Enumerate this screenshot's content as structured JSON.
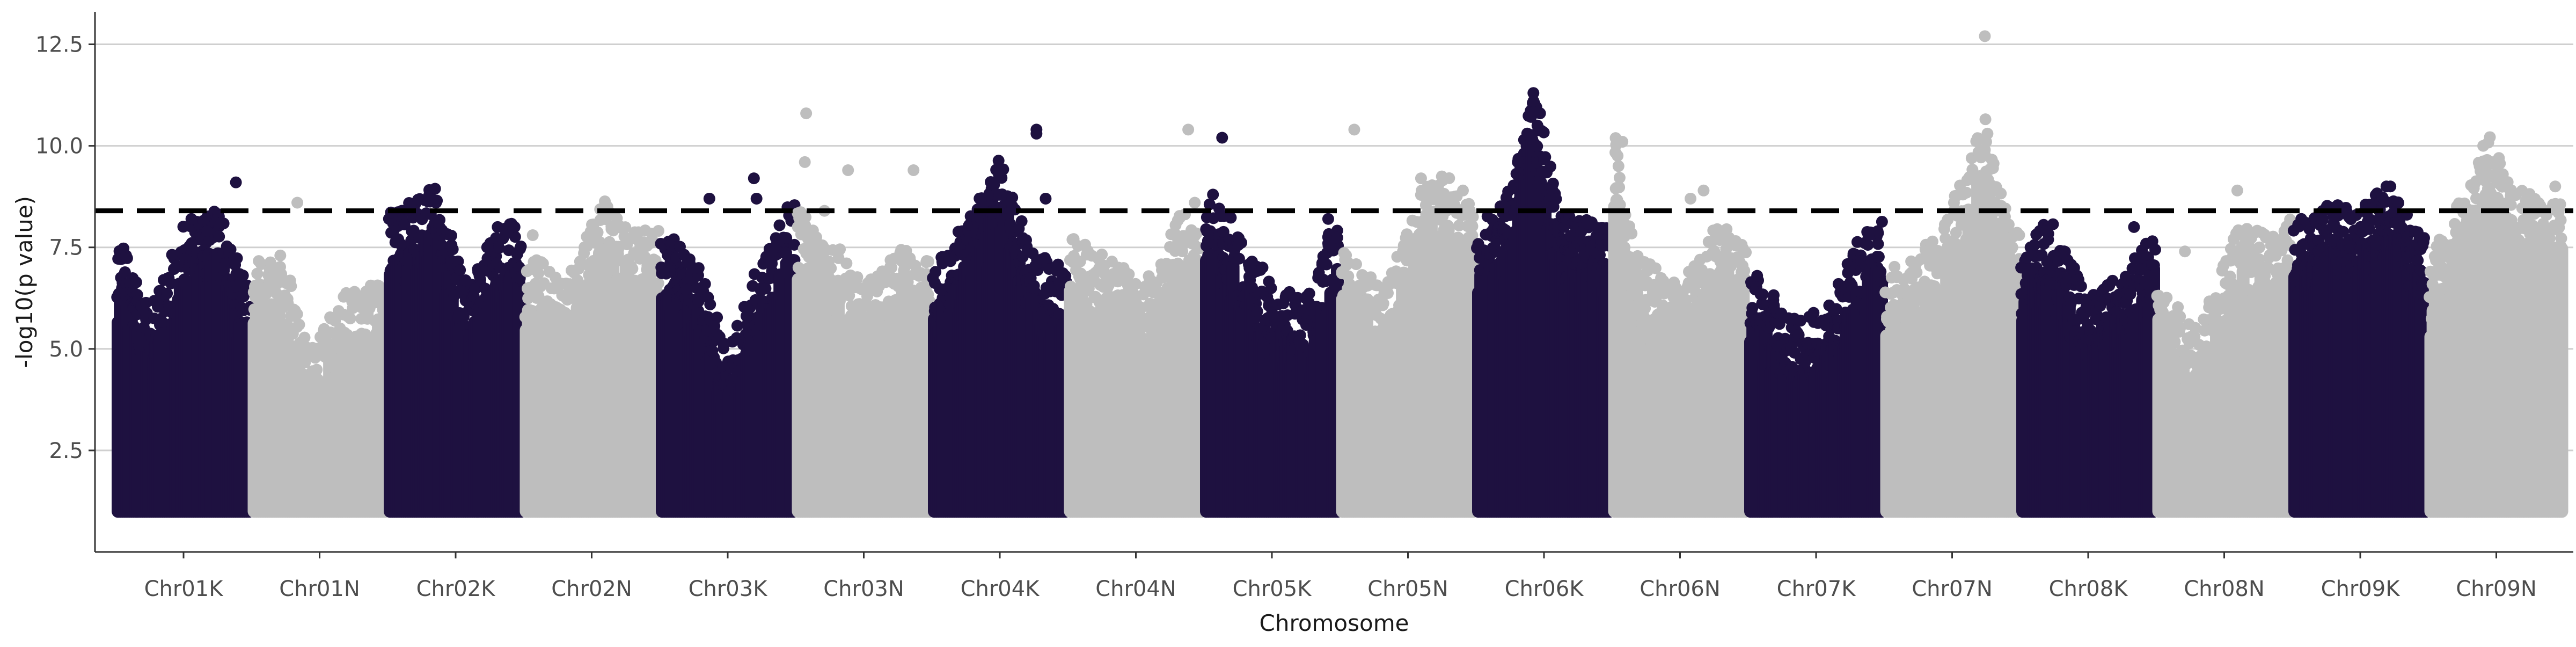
{
  "chart_data": {
    "type": "scatter",
    "subtype": "manhattan",
    "xlabel": "Chromosome",
    "ylabel": "-log10(p value)",
    "ylim": [
      0.0,
      13.3
    ],
    "yticks": [
      "2.5",
      "5.0",
      "7.5",
      "10.0",
      "12.5"
    ],
    "grid": "horizontal",
    "legend": "none",
    "threshold": 8.4,
    "colors": {
      "dark": "#1e1140",
      "light": "#bebebe"
    },
    "categories": [
      "Chr01K",
      "Chr01N",
      "Chr02K",
      "Chr02N",
      "Chr03K",
      "Chr03N",
      "Chr04K",
      "Chr04N",
      "Chr05K",
      "Chr05N",
      "Chr06K",
      "Chr06N",
      "Chr07K",
      "Chr07N",
      "Chr08K",
      "Chr08N",
      "Chr09K",
      "Chr09N"
    ],
    "series": [
      {
        "category": "Chr01K",
        "color": "dark",
        "profile": [
          [
            0,
            7.4
          ],
          [
            0.25,
            5.6
          ],
          [
            0.5,
            7.6
          ],
          [
            0.75,
            8.1
          ],
          [
            1,
            6.2
          ]
        ],
        "top_points": [
          [
            0.56,
            8.2
          ],
          [
            0.68,
            7.9
          ],
          [
            0.9,
            9.1
          ]
        ]
      },
      {
        "category": "Chr01N",
        "color": "light",
        "profile": [
          [
            0,
            6.9
          ],
          [
            0.25,
            6.6
          ],
          [
            0.4,
            4.6
          ],
          [
            0.7,
            6.0
          ],
          [
            1,
            6.3
          ]
        ],
        "top_points": [
          [
            0.33,
            8.6
          ],
          [
            0.2,
            7.3
          ]
        ]
      },
      {
        "category": "Chr02K",
        "color": "dark",
        "profile": [
          [
            0,
            8.0
          ],
          [
            0.35,
            8.6
          ],
          [
            0.6,
            6.2
          ],
          [
            0.8,
            7.6
          ],
          [
            1,
            7.8
          ]
        ],
        "top_points": [
          [
            0.3,
            8.7
          ],
          [
            0.35,
            8.6
          ],
          [
            0.95,
            8.0
          ]
        ]
      },
      {
        "category": "Chr02N",
        "color": "light",
        "profile": [
          [
            0,
            7.0
          ],
          [
            0.3,
            6.4
          ],
          [
            0.6,
            8.3
          ],
          [
            0.85,
            7.5
          ],
          [
            1,
            7.6
          ]
        ],
        "top_points": [
          [
            0.62,
            8.5
          ],
          [
            0.05,
            7.8
          ]
        ]
      },
      {
        "category": "Chr03K",
        "color": "dark",
        "profile": [
          [
            0,
            7.6
          ],
          [
            0.3,
            6.6
          ],
          [
            0.5,
            4.5
          ],
          [
            0.75,
            6.8
          ],
          [
            1,
            8.3
          ]
        ],
        "top_points": [
          [
            0.36,
            8.7
          ],
          [
            0.7,
            9.2
          ],
          [
            0.72,
            8.7
          ]
        ]
      },
      {
        "category": "Chr03N",
        "color": "light",
        "profile": [
          [
            0,
            8.2
          ],
          [
            0.25,
            7.4
          ],
          [
            0.5,
            6.2
          ],
          [
            0.8,
            7.1
          ],
          [
            1,
            6.8
          ]
        ],
        "top_points": [
          [
            0.06,
            10.8
          ],
          [
            0.05,
            9.6
          ],
          [
            0.38,
            9.4
          ],
          [
            0.88,
            9.4
          ],
          [
            0.2,
            8.4
          ]
        ]
      },
      {
        "category": "Chr04K",
        "color": "dark",
        "profile": [
          [
            0,
            6.7
          ],
          [
            0.4,
            8.6
          ],
          [
            0.5,
            9.4
          ],
          [
            0.75,
            7.0
          ],
          [
            1,
            6.7
          ]
        ],
        "top_points": [
          [
            0.5,
            9.4
          ],
          [
            0.78,
            10.4
          ],
          [
            0.78,
            10.3
          ],
          [
            0.85,
            8.7
          ],
          [
            0.45,
            8.4
          ]
        ]
      },
      {
        "category": "Chr04N",
        "color": "light",
        "profile": [
          [
            0,
            7.4
          ],
          [
            0.3,
            6.8
          ],
          [
            0.6,
            6.4
          ],
          [
            0.85,
            8.0
          ],
          [
            1,
            7.3
          ]
        ],
        "top_points": [
          [
            0.9,
            10.4
          ],
          [
            0.95,
            8.6
          ]
        ]
      },
      {
        "category": "Chr05K",
        "color": "dark",
        "profile": [
          [
            0,
            8.4
          ],
          [
            0.2,
            7.8
          ],
          [
            0.5,
            6.2
          ],
          [
            0.8,
            6.0
          ],
          [
            1,
            8.2
          ]
        ],
        "top_points": [
          [
            0.12,
            10.2
          ],
          [
            0.05,
            8.8
          ],
          [
            0.93,
            8.2
          ],
          [
            0.93,
            7.6
          ]
        ]
      },
      {
        "category": "Chr05N",
        "color": "light",
        "profile": [
          [
            0,
            7.0
          ],
          [
            0.35,
            6.2
          ],
          [
            0.6,
            8.5
          ],
          [
            0.8,
            9.0
          ],
          [
            1,
            8.2
          ]
        ],
        "top_points": [
          [
            0.09,
            10.4
          ],
          [
            0.6,
            9.2
          ],
          [
            0.7,
            9.0
          ],
          [
            0.92,
            8.9
          ]
        ]
      },
      {
        "category": "Chr06K",
        "color": "dark",
        "profile": [
          [
            0,
            7.6
          ],
          [
            0.25,
            8.6
          ],
          [
            0.42,
            11.1
          ],
          [
            0.6,
            8.2
          ],
          [
            1,
            7.6
          ]
        ],
        "top_points": [
          [
            0.42,
            11.1
          ],
          [
            0.47,
            10.8
          ],
          [
            0.45,
            10.5
          ],
          [
            0.3,
            9.6
          ],
          [
            0.2,
            8.5
          ]
        ]
      },
      {
        "category": "Chr06N",
        "color": "light",
        "profile": [
          [
            0,
            10.0
          ],
          [
            0.15,
            7.0
          ],
          [
            0.5,
            6.2
          ],
          [
            0.8,
            7.8
          ],
          [
            1,
            7.2
          ]
        ],
        "top_points": [
          [
            0.06,
            10.1
          ],
          [
            0.03,
            9.5
          ],
          [
            0.58,
            8.7
          ],
          [
            0.68,
            8.9
          ]
        ]
      },
      {
        "category": "Chr07K",
        "color": "dark",
        "profile": [
          [
            0,
            6.6
          ],
          [
            0.3,
            5.4
          ],
          [
            0.6,
            5.6
          ],
          [
            0.8,
            7.2
          ],
          [
            1,
            7.8
          ]
        ],
        "top_points": [
          [
            0.05,
            6.8
          ],
          [
            0.9,
            7.8
          ]
        ]
      },
      {
        "category": "Chr07N",
        "color": "light",
        "profile": [
          [
            0,
            6.6
          ],
          [
            0.4,
            7.4
          ],
          [
            0.75,
            10.3
          ],
          [
            0.85,
            8.6
          ],
          [
            1,
            7.8
          ]
        ],
        "top_points": [
          [
            0.75,
            12.7
          ],
          [
            0.77,
            10.3
          ],
          [
            0.76,
            10.1
          ],
          [
            0.75,
            9.9
          ]
        ]
      },
      {
        "category": "Chr08K",
        "color": "dark",
        "profile": [
          [
            0,
            7.2
          ],
          [
            0.2,
            7.8
          ],
          [
            0.5,
            6.0
          ],
          [
            0.8,
            6.6
          ],
          [
            1,
            7.5
          ]
        ],
        "top_points": [
          [
            0.18,
            7.9
          ],
          [
            0.85,
            8.0
          ]
        ]
      },
      {
        "category": "Chr08N",
        "color": "light",
        "profile": [
          [
            0,
            6.3
          ],
          [
            0.3,
            5.0
          ],
          [
            0.6,
            7.6
          ],
          [
            0.85,
            7.5
          ],
          [
            1,
            7.8
          ]
        ],
        "top_points": [
          [
            0.6,
            8.9
          ],
          [
            0.2,
            7.4
          ]
        ]
      },
      {
        "category": "Chr09K",
        "color": "dark",
        "profile": [
          [
            0,
            7.6
          ],
          [
            0.25,
            8.2
          ],
          [
            0.5,
            8.0
          ],
          [
            0.7,
            8.8
          ],
          [
            1,
            7.3
          ]
        ],
        "top_points": [
          [
            0.7,
            9.0
          ],
          [
            0.73,
            9.0
          ],
          [
            0.3,
            8.3
          ],
          [
            0.05,
            8.2
          ]
        ]
      },
      {
        "category": "Chr09N",
        "color": "light",
        "profile": [
          [
            0,
            6.9
          ],
          [
            0.35,
            9.0
          ],
          [
            0.45,
            9.9
          ],
          [
            0.6,
            8.6
          ],
          [
            1,
            8.2
          ]
        ],
        "top_points": [
          [
            0.4,
            10.0
          ],
          [
            0.52,
            9.7
          ],
          [
            0.46,
            9.6
          ],
          [
            0.55,
            9.3
          ],
          [
            0.95,
            9.0
          ]
        ]
      }
    ]
  }
}
